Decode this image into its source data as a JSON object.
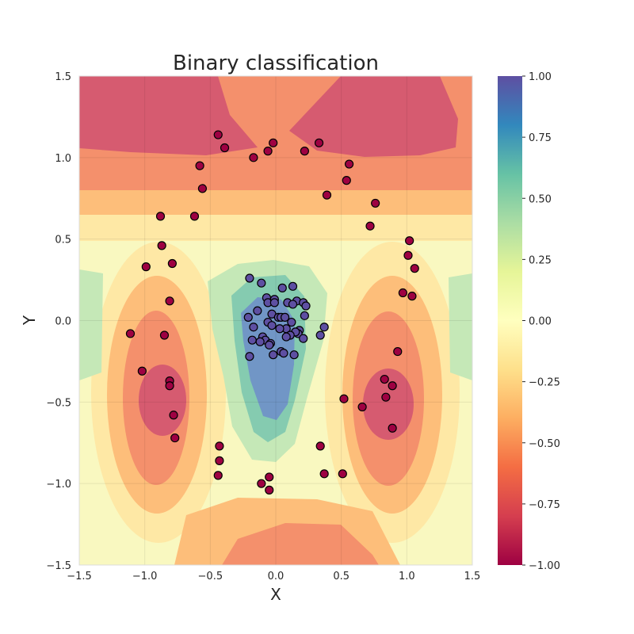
{
  "chart_data": {
    "type": "scatter",
    "title": "Binary classification",
    "xlabel": "X",
    "ylabel": "Y",
    "xlim": [
      -1.5,
      1.5
    ],
    "ylim": [
      -1.5,
      1.5
    ],
    "xticks": [
      -1.5,
      -1.0,
      -0.5,
      0.0,
      0.5,
      1.0,
      1.5
    ],
    "yticks": [
      -1.5,
      -1.0,
      -0.5,
      0.0,
      0.5,
      1.0,
      1.5
    ],
    "xtick_labels": [
      "−1.5",
      "−1.0",
      "−0.5",
      "0.0",
      "0.5",
      "1.0",
      "1.5"
    ],
    "ytick_labels": [
      "−1.5",
      "−1.0",
      "−0.5",
      "0.0",
      "0.5",
      "1.0",
      "1.5"
    ],
    "grid": true,
    "colormap": "Spectral",
    "colorbar": {
      "range": [
        -1.0,
        1.0
      ],
      "ticks": [
        -1.0,
        -0.75,
        -0.5,
        -0.25,
        0.0,
        0.25,
        0.5,
        0.75,
        1.0
      ],
      "tick_labels": [
        "−1.00",
        "−0.75",
        "−0.50",
        "−0.25",
        "0.00",
        "0.25",
        "0.50",
        "0.75",
        "1.00"
      ]
    },
    "colors": {
      "class_outer": "#9e0142",
      "class_inner": "#5e4fa2",
      "point_edge": "#000000"
    },
    "series": [
      {
        "class": -1,
        "x": [
          -0.44,
          -0.39,
          -0.02,
          -0.06,
          -0.17,
          0.22,
          0.33,
          0.56,
          -0.58,
          -0.56,
          0.54,
          0.39,
          0.76,
          0.72,
          -0.88,
          -0.62,
          -0.87,
          -0.79,
          -0.99,
          1.02,
          1.01,
          1.06,
          -0.81,
          0.97,
          1.04,
          -1.11,
          -0.85,
          0.93,
          -1.02,
          -0.81,
          -0.81,
          0.83,
          0.89,
          0.84,
          0.52,
          0.66,
          -0.78,
          0.89,
          -0.77,
          -0.43,
          -0.43,
          -0.44,
          0.34,
          0.37,
          0.51,
          -0.05,
          -0.11,
          -0.05
        ],
        "y": [
          1.14,
          1.06,
          1.09,
          1.04,
          1.0,
          1.04,
          1.09,
          0.96,
          0.95,
          0.81,
          0.86,
          0.77,
          0.72,
          0.58,
          0.64,
          0.64,
          0.46,
          0.35,
          0.33,
          0.49,
          0.4,
          0.32,
          0.12,
          0.17,
          0.15,
          -0.08,
          -0.09,
          -0.19,
          -0.31,
          -0.37,
          -0.4,
          -0.36,
          -0.4,
          -0.47,
          -0.48,
          -0.53,
          -0.58,
          -0.66,
          -0.72,
          -0.77,
          -0.86,
          -0.95,
          -0.77,
          -0.94,
          -0.94,
          -0.96,
          -1.0,
          -1.04
        ]
      },
      {
        "class": 1,
        "x": [
          -0.2,
          -0.11,
          0.05,
          0.13,
          -0.14,
          -0.07,
          -0.06,
          -0.01,
          0.16,
          0.21,
          0.23,
          -0.01,
          0.09,
          0.13,
          -0.03,
          0.22,
          0.02,
          0.04,
          0.07,
          0.12,
          0.18,
          -0.21,
          -0.06,
          -0.03,
          -0.17,
          0.37,
          0.08,
          0.03,
          -0.1,
          0.17,
          0.15,
          0.34,
          0.11,
          -0.18,
          -0.08,
          0.21,
          -0.12,
          -0.04,
          0.08,
          -0.05,
          0.04,
          0.06,
          -0.02,
          0.14,
          -0.2
        ],
        "y": [
          0.26,
          0.23,
          0.2,
          0.21,
          0.06,
          0.14,
          0.11,
          0.13,
          0.12,
          0.11,
          0.09,
          0.11,
          0.11,
          0.1,
          0.04,
          0.03,
          0.02,
          0.02,
          0.02,
          -0.01,
          -0.06,
          0.02,
          -0.01,
          -0.03,
          -0.04,
          -0.04,
          -0.05,
          -0.05,
          -0.1,
          -0.08,
          -0.07,
          -0.09,
          -0.09,
          -0.12,
          -0.12,
          -0.11,
          -0.13,
          -0.14,
          -0.1,
          -0.15,
          -0.19,
          -0.2,
          -0.21,
          -0.21,
          -0.22
        ]
      }
    ]
  }
}
